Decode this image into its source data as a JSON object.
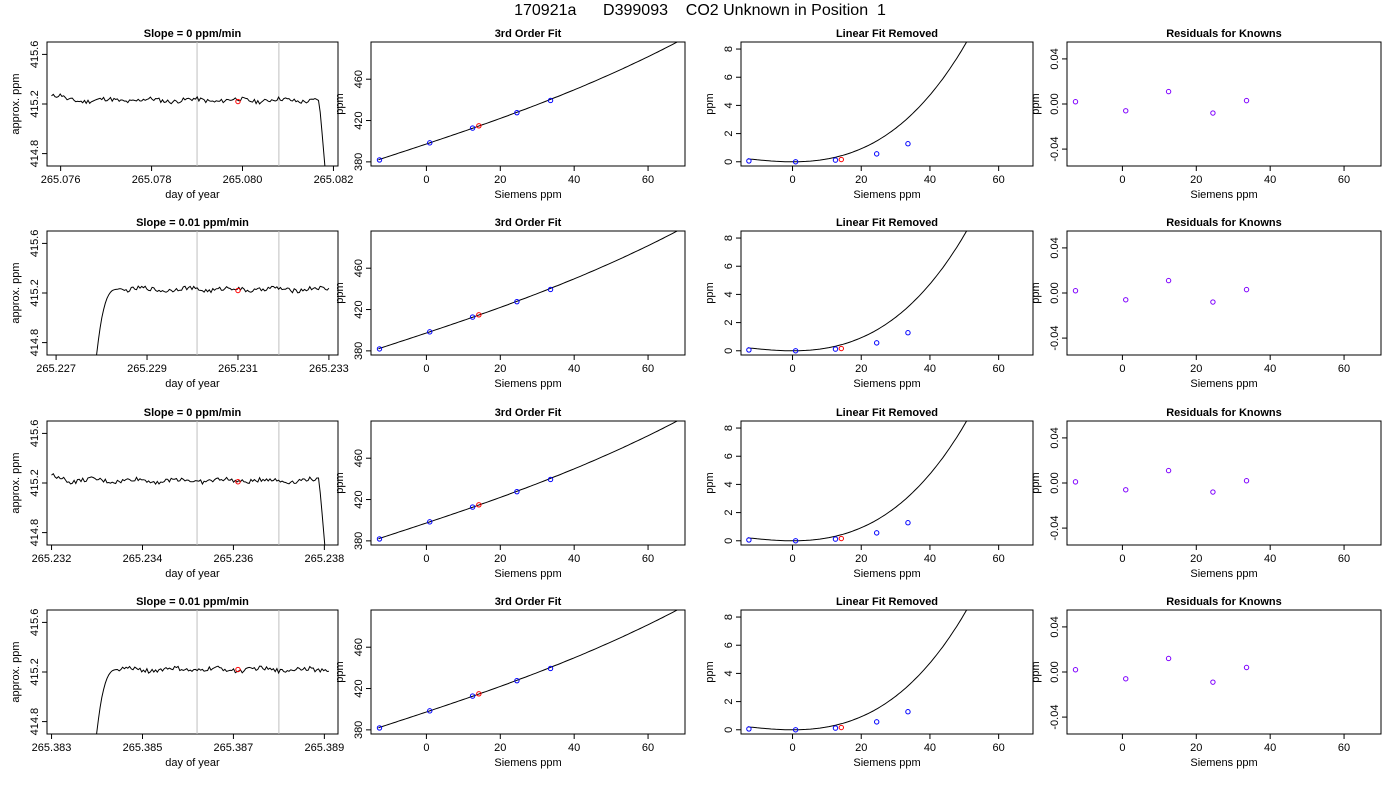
{
  "figure_title": "170921a      D399093    CO2 Unknown in Position  1",
  "colors": {
    "line": "#000000",
    "grid_vline": "#bebebe",
    "known_point": "#0000ff",
    "unknown_point": "#ff0000",
    "residual_point": "#7f00ff"
  },
  "chart_data": [
    {
      "type": "line",
      "title": "Slope =  0  ppm/min",
      "xlabel": "day of year",
      "ylabel": "approx. ppm",
      "xlim": [
        265.0757,
        265.0821
      ],
      "ylim": [
        414.7,
        415.7
      ],
      "xticks": [
        "265.076",
        "265.078",
        "265.080",
        "265.082"
      ],
      "xtick_values": [
        265.076,
        265.078,
        265.08,
        265.082
      ],
      "yticks": [
        "414.8",
        "415.2",
        "415.6"
      ],
      "ytick_values": [
        414.8,
        415.2,
        415.6
      ],
      "vlines": [
        265.079,
        265.0808
      ],
      "level": 415.23,
      "trace_start": "flat",
      "trace_end": "drop",
      "marker": {
        "x": 265.0799,
        "y": 415.22
      }
    },
    {
      "type": "line",
      "title": "Slope =  0.01  ppm/min",
      "xlabel": "day of year",
      "ylabel": "approx. ppm",
      "xlim": [
        265.2268,
        265.2332
      ],
      "ylim": [
        414.7,
        415.7
      ],
      "xticks": [
        "265.227",
        "265.229",
        "265.231",
        "265.233"
      ],
      "xtick_values": [
        265.227,
        265.229,
        265.231,
        265.233
      ],
      "yticks": [
        "414.8",
        "415.2",
        "415.6"
      ],
      "ytick_values": [
        414.8,
        415.2,
        415.6
      ],
      "vlines": [
        265.2301,
        265.2319
      ],
      "level": 415.23,
      "trace_start": "rise",
      "trace_end": "flat",
      "marker": {
        "x": 265.231,
        "y": 415.22
      }
    },
    {
      "type": "line",
      "title": "Slope =  0  ppm/min",
      "xlabel": "day of year",
      "ylabel": "approx. ppm",
      "xlim": [
        265.2319,
        265.2383
      ],
      "ylim": [
        414.7,
        415.7
      ],
      "xticks": [
        "265.232",
        "265.234",
        "265.236",
        "265.238"
      ],
      "xtick_values": [
        265.232,
        265.234,
        265.236,
        265.238
      ],
      "yticks": [
        "414.8",
        "415.2",
        "415.6"
      ],
      "ytick_values": [
        414.8,
        415.2,
        415.6
      ],
      "vlines": [
        265.2352,
        265.237
      ],
      "level": 415.22,
      "trace_start": "flat",
      "trace_end": "drop",
      "marker": {
        "x": 265.2361,
        "y": 415.21
      }
    },
    {
      "type": "line",
      "title": "Slope =  0.01  ppm/min",
      "xlabel": "day of year",
      "ylabel": "approx. ppm",
      "xlim": [
        265.3829,
        265.3893
      ],
      "ylim": [
        414.7,
        415.7
      ],
      "xticks": [
        "265.383",
        "265.385",
        "265.387",
        "265.389"
      ],
      "xtick_values": [
        265.383,
        265.385,
        265.387,
        265.389
      ],
      "yticks": [
        "414.8",
        "415.2",
        "415.6"
      ],
      "ytick_values": [
        414.8,
        415.2,
        415.6
      ],
      "vlines": [
        265.3862,
        265.388
      ],
      "level": 415.22,
      "trace_start": "rise",
      "trace_end": "flat",
      "marker": {
        "x": 265.3871,
        "y": 415.22
      }
    }
  ],
  "calibration": {
    "known_x": [
      -12.7,
      0.9,
      12.5,
      24.5,
      33.6
    ],
    "unknown_x": 14.2,
    "fit": {
      "title": "3rd Order Fit",
      "xlabel": "Siemens ppm",
      "ylabel": "ppm",
      "xlim": [
        -15,
        70
      ],
      "ylim": [
        376,
        496
      ],
      "xticks": [
        "0",
        "20",
        "40",
        "60"
      ],
      "xtick_values": [
        0,
        20,
        40,
        60
      ],
      "yticks": [
        "380",
        "420",
        "460"
      ],
      "ytick_values": [
        380,
        420,
        460
      ],
      "known_y": [
        381.9,
        398.4,
        412.7,
        427.6,
        439.4
      ],
      "unknown_y": 414.9,
      "curve_x_range": [
        -13,
        68
      ],
      "curve_coeffs": [
        397.32,
        1.1913,
        0.00167,
        3.23e-05
      ]
    },
    "linear_removed": {
      "title": "Linear Fit Removed",
      "xlabel": "Siemens ppm",
      "ylabel": "ppm",
      "xlim": [
        -15,
        70
      ],
      "ylim": [
        -0.3,
        8.5
      ],
      "xticks": [
        "0",
        "20",
        "40",
        "60"
      ],
      "xtick_values": [
        0,
        20,
        40,
        60
      ],
      "yticks": [
        "0",
        "2",
        "4",
        "6",
        "8"
      ],
      "ytick_values": [
        0,
        2,
        4,
        6,
        8
      ],
      "known_y": [
        0.06,
        0.0,
        0.12,
        0.56,
        1.28
      ],
      "unknown_y": 0.16,
      "curve_x_range": [
        -13,
        68
      ],
      "curve_coeffs": [
        0.0,
        0.0,
        0.00167,
        3.23e-05
      ]
    },
    "residuals": {
      "title": "Residuals for Knowns",
      "xlabel": "Siemens ppm",
      "ylabel": "ppm",
      "xlim": [
        -15,
        70
      ],
      "ylim": [
        -0.055,
        0.055
      ],
      "xticks": [
        "0",
        "20",
        "40",
        "60"
      ],
      "xtick_values": [
        0,
        20,
        40,
        60
      ],
      "yticks": [
        "-0.04",
        "0.00",
        "0.04"
      ],
      "ytick_values": [
        -0.04,
        0.0,
        0.04
      ],
      "rows": [
        [
          0.002,
          -0.006,
          0.011,
          -0.008,
          0.003
        ],
        [
          0.002,
          -0.006,
          0.011,
          -0.008,
          0.003
        ],
        [
          0.001,
          -0.006,
          0.011,
          -0.008,
          0.002
        ],
        [
          0.002,
          -0.006,
          0.012,
          -0.009,
          0.004
        ]
      ]
    }
  }
}
